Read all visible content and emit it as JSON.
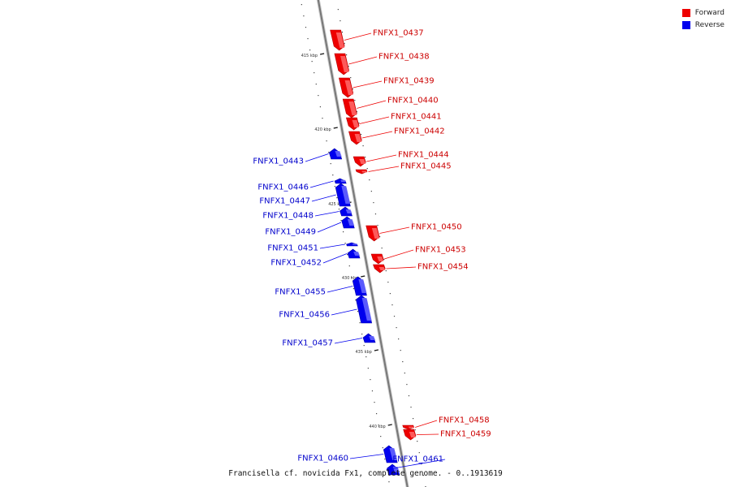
{
  "caption": "Francisella cf. novicida Fx1, complete genome. - 0..1913619",
  "legend": [
    {
      "label": "Forward",
      "color": "#ee0000",
      "icon": "red-square-icon"
    },
    {
      "label": "Reverse",
      "color": "#0000ee",
      "icon": "blue-square-icon"
    }
  ],
  "ticks": [
    {
      "label": "415 kbp",
      "kb": 415
    },
    {
      "label": "420 kbp",
      "kb": 420
    },
    {
      "label": "425 kbp",
      "kb": 425
    },
    {
      "label": "430 kbp",
      "kb": 430
    },
    {
      "label": "435 kbp",
      "kb": 435
    },
    {
      "label": "440 kbp",
      "kb": 440
    }
  ],
  "genes": [
    {
      "name": "FNFX1_0437",
      "strand": "forward"
    },
    {
      "name": "FNFX1_0438",
      "strand": "forward"
    },
    {
      "name": "FNFX1_0439",
      "strand": "forward"
    },
    {
      "name": "FNFX1_0440",
      "strand": "forward"
    },
    {
      "name": "FNFX1_0441",
      "strand": "forward"
    },
    {
      "name": "FNFX1_0442",
      "strand": "forward"
    },
    {
      "name": "FNFX1_0443",
      "strand": "reverse"
    },
    {
      "name": "FNFX1_0444",
      "strand": "forward"
    },
    {
      "name": "FNFX1_0445",
      "strand": "forward"
    },
    {
      "name": "FNFX1_0446",
      "strand": "reverse"
    },
    {
      "name": "FNFX1_0447",
      "strand": "reverse"
    },
    {
      "name": "FNFX1_0448",
      "strand": "reverse"
    },
    {
      "name": "FNFX1_0449",
      "strand": "reverse"
    },
    {
      "name": "FNFX1_0450",
      "strand": "forward"
    },
    {
      "name": "FNFX1_0451",
      "strand": "reverse"
    },
    {
      "name": "FNFX1_0452",
      "strand": "reverse"
    },
    {
      "name": "FNFX1_0453",
      "strand": "forward"
    },
    {
      "name": "FNFX1_0454",
      "strand": "forward"
    },
    {
      "name": "FNFX1_0455",
      "strand": "reverse"
    },
    {
      "name": "FNFX1_0456",
      "strand": "reverse"
    },
    {
      "name": "FNFX1_0457",
      "strand": "reverse"
    },
    {
      "name": "FNFX1_0458",
      "strand": "forward"
    },
    {
      "name": "FNFX1_0459",
      "strand": "forward"
    },
    {
      "name": "FNFX1_0460",
      "strand": "reverse"
    },
    {
      "name": "FNFX1_0461",
      "strand": "reverse"
    }
  ]
}
